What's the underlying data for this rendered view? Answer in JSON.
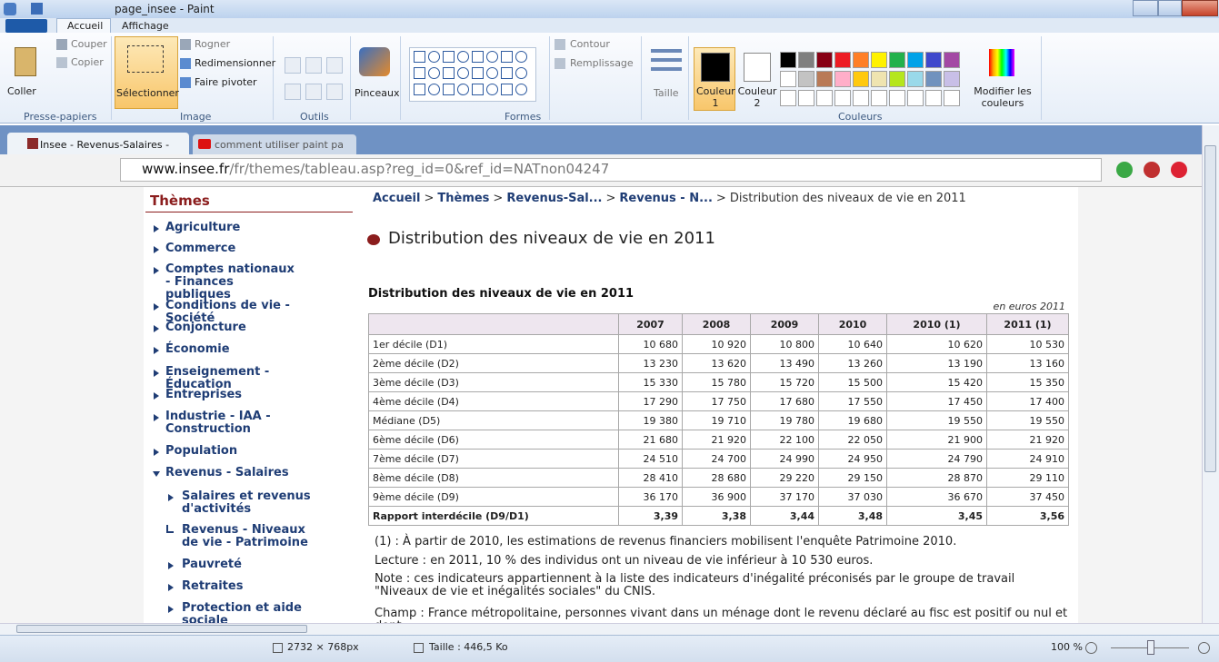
{
  "window": {
    "title": "page_insee - Paint"
  },
  "ribbon": {
    "tabs": [
      "Accueil",
      "Affichage"
    ],
    "clipboard": {
      "paste": "Coller",
      "cut": "Couper",
      "copy": "Copier",
      "group": "Presse-papiers"
    },
    "image": {
      "select": "Sélectionner",
      "crop": "Rogner",
      "resize": "Redimensionner",
      "rotate": "Faire pivoter",
      "group": "Image"
    },
    "tools": "Outils",
    "brushes": "Pinceaux",
    "shapes": {
      "outline": "Contour",
      "fill": "Remplissage",
      "group": "Formes"
    },
    "size": "Taille",
    "color1": "Couleur 1",
    "color2": "Couleur 2",
    "colors": "Couleurs",
    "edit_colors": "Modifier les couleurs"
  },
  "browser": {
    "tabs": [
      "Insee - Revenus-Salaires -",
      "comment utiliser paint pa"
    ],
    "url_host": "www.insee.fr",
    "url_path": "/fr/themes/tableau.asp?reg_id=0&ref_id=NATnon04247"
  },
  "sidebar": {
    "title": "Thèmes",
    "items": [
      "Agriculture",
      "Commerce",
      "Comptes nationaux - Finances publiques",
      "Conditions de vie - Société",
      "Conjoncture",
      "Économie",
      "Enseignement - Éducation",
      "Entreprises",
      "Industrie - IAA - Construction",
      "Population",
      "Revenus - Salaires"
    ],
    "subitems": [
      "Salaires et revenus d'activités",
      "Revenus - Niveaux de vie - Patrimoine"
    ],
    "after": [
      "Pauvreté",
      "Retraites",
      "Protection et aide sociale"
    ]
  },
  "breadcrumb": {
    "separator": ">",
    "links": [
      "Accueil",
      "Thèmes",
      "Revenus-Sal...",
      "Revenus - N..."
    ],
    "current": "Distribution des niveaux de vie en 2011"
  },
  "heading": "Distribution des niveaux de vie en 2011",
  "table": {
    "title": "Distribution des niveaux de vie en 2011",
    "unit": "en euros 2011",
    "header": [
      "2007",
      "2008",
      "2009",
      "2010",
      "2010 (1)",
      "2011 (1)"
    ],
    "rows": [
      [
        "1er décile (D1)",
        "10 680",
        "10 920",
        "10 800",
        "10 640",
        "10 620",
        "10 530"
      ],
      [
        "2ème décile (D2)",
        "13 230",
        "13 620",
        "13 490",
        "13 260",
        "13 190",
        "13 160"
      ],
      [
        "3ème décile (D3)",
        "15 330",
        "15 780",
        "15 720",
        "15 500",
        "15 420",
        "15 350"
      ],
      [
        "4ème décile (D4)",
        "17 290",
        "17 750",
        "17 680",
        "17 550",
        "17 450",
        "17 400"
      ],
      [
        "Médiane (D5)",
        "19 380",
        "19 710",
        "19 780",
        "19 680",
        "19 550",
        "19 550"
      ],
      [
        "6ème décile (D6)",
        "21 680",
        "21 920",
        "22 100",
        "22 050",
        "21 900",
        "21 920"
      ],
      [
        "7ème décile (D7)",
        "24 510",
        "24 700",
        "24 990",
        "24 950",
        "24 790",
        "24 910"
      ],
      [
        "8ème décile (D8)",
        "28 410",
        "28 680",
        "29 220",
        "29 150",
        "28 870",
        "29 110"
      ],
      [
        "9ème décile (D9)",
        "36 170",
        "36 900",
        "37 170",
        "37 030",
        "36 670",
        "37 450"
      ],
      [
        "Rapport interdécile (D9/D1)",
        "3,39",
        "3,38",
        "3,44",
        "3,48",
        "3,45",
        "3,56"
      ]
    ]
  },
  "notes": [
    "(1) : À partir de 2010, les estimations de revenus financiers mobilisent l'enquête Patrimoine 2010.",
    "Lecture : en 2011, 10 % des individus ont un niveau de vie inférieur à 10 530 euros.",
    "Note : ces indicateurs appartiennent à la liste des indicateurs d'inégalité préconisés par le groupe de travail \"Niveaux de vie et inégalités sociales\" du CNIS.",
    "Champ : France métropolitaine, personnes vivant dans un ménage dont le revenu déclaré au fisc est positif ou nul et dont"
  ],
  "status": {
    "dimensions": "2732 × 768px",
    "size": "Taille : 446,5 Ko",
    "zoom": "100 %"
  }
}
